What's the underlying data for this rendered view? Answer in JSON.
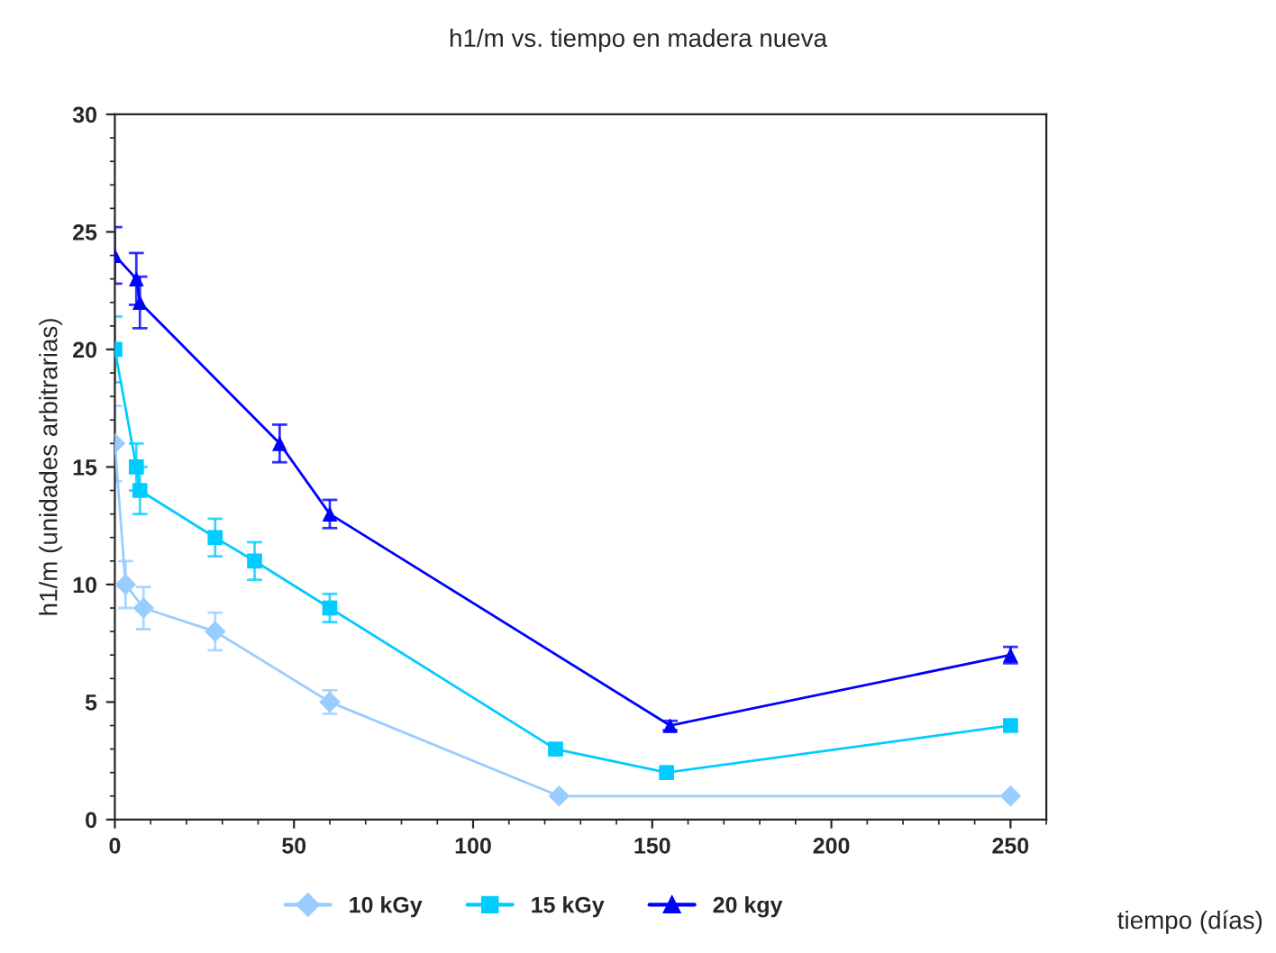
{
  "chart_data": {
    "type": "line",
    "title": "h1/m vs. tiempo en madera nueva",
    "xlabel": "tiempo (días)",
    "ylabel": "h1/m (unidades arbitrarias)",
    "xlim": [
      0,
      260
    ],
    "xticks": [
      0,
      50,
      100,
      150,
      200,
      250
    ],
    "ylim": [
      0,
      30
    ],
    "yticks": [
      0,
      5,
      10,
      15,
      20,
      25,
      30
    ],
    "grid": false,
    "legend": "bottom",
    "series": [
      {
        "name": "10 kGy",
        "color": "#99ccff",
        "marker": "diamond",
        "x": [
          0,
          3,
          8,
          28,
          60,
          124,
          250
        ],
        "values": [
          16,
          10,
          9,
          8,
          5,
          1,
          1
        ],
        "errors": [
          1.6,
          1,
          0.9,
          0.8,
          0.5,
          0.1,
          0.1
        ]
      },
      {
        "name": "15 kGy",
        "color": "#00ccff",
        "marker": "square",
        "x": [
          0,
          6,
          7,
          28,
          39,
          60,
          123,
          154,
          250
        ],
        "values": [
          20,
          15,
          14,
          12,
          11,
          9,
          3,
          2,
          4
        ],
        "errors": [
          1.4,
          1,
          1,
          0.8,
          0.8,
          0.6,
          0.2,
          0.1,
          0.2
        ]
      },
      {
        "name": "20 kgy",
        "color": "#0000ff",
        "marker": "triangle",
        "x": [
          0,
          6,
          7,
          46,
          60,
          155,
          250
        ],
        "values": [
          24,
          23,
          22,
          16,
          13,
          4,
          7
        ],
        "errors": [
          1.2,
          1.1,
          1.1,
          0.8,
          0.6,
          0.2,
          0.35
        ]
      }
    ]
  }
}
